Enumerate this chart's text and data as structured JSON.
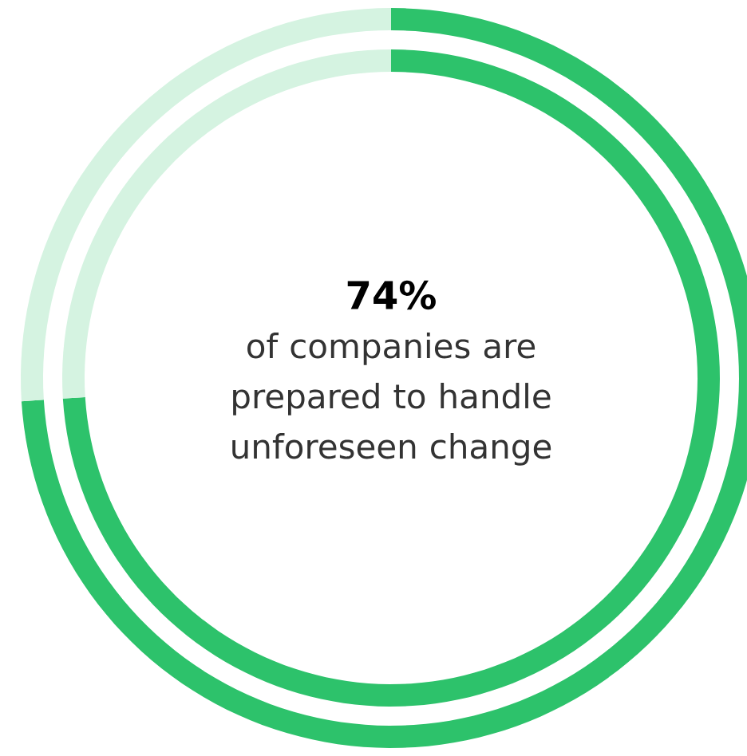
{
  "chart_data": {
    "type": "donut",
    "categories": [
      null,
      null
    ],
    "values": [
      74,
      26
    ],
    "colors": [
      "#2dc26b",
      "#d5f3e1"
    ],
    "value_labels": [
      "74%",
      null
    ],
    "annotations": [
      "of companies are prepared to handle unforeseen change"
    ]
  }
}
